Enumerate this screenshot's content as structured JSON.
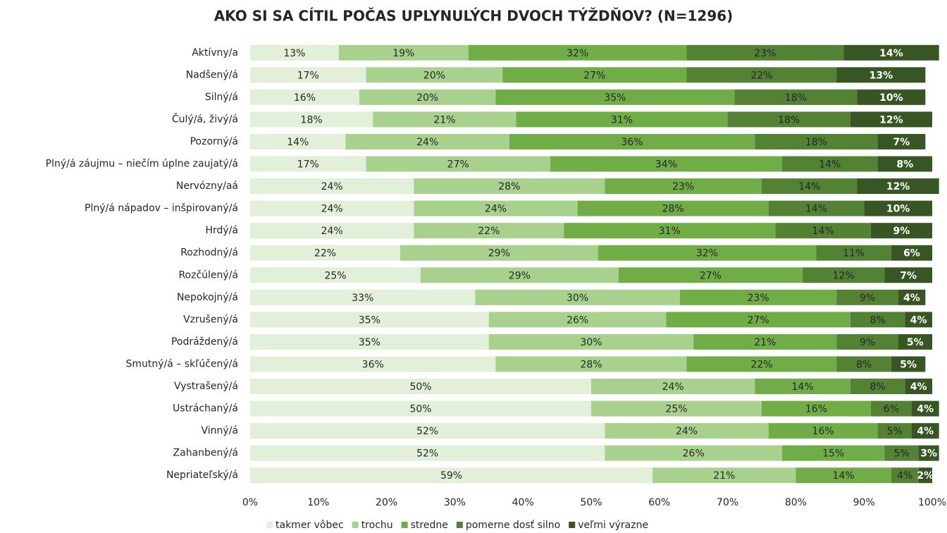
{
  "chart_data": {
    "type": "stacked-barh",
    "title": "AKO SI SA CÍTIL POČAS UPLYNULÝCH DVOCH TÝŽDŇOV? (N=1296)",
    "categories": [
      "Aktívny/a",
      "Nadšený/á",
      "Silný/á",
      "Čulý/á, živý/á",
      "Pozorný/á",
      "Plný/á záujmu – niečím úplne zaujatý/á",
      "Nervózny/aá",
      "Plný/á nápadov – inšpirovaný/á",
      "Hrdý/á",
      "Rozhodný/á",
      "Rozčúlený/á",
      "Nepokojný/á",
      "Vzrušený/á",
      "Podráždený/á",
      "Smutný/á – skľúčený/á",
      "Vystrašený/á",
      "Ustráchaný/á",
      "Vinný/á",
      "Zahanbený/á",
      "Nepriateľský/á"
    ],
    "series": [
      {
        "name": "takmer vôbec",
        "color": "#e2efd9",
        "values": [
          13,
          17,
          16,
          18,
          14,
          17,
          24,
          24,
          24,
          22,
          25,
          33,
          35,
          35,
          36,
          50,
          50,
          52,
          52,
          59
        ],
        "value_labels": [
          "13%",
          "17%",
          "16%",
          "18%",
          "14%",
          "17%",
          "24%",
          "24%",
          "24%",
          "22%",
          "25%",
          "33%",
          "35%",
          "35%",
          "36%",
          "50%",
          "50%",
          "52%",
          "52%",
          "59%"
        ]
      },
      {
        "name": "trochu",
        "color": "#a9d18e",
        "values": [
          19,
          20,
          20,
          21,
          24,
          27,
          28,
          24,
          22,
          29,
          29,
          30,
          26,
          30,
          28,
          24,
          25,
          24,
          26,
          21
        ],
        "value_labels": [
          "19%",
          "20%",
          "20%",
          "21%",
          "24%",
          "27%",
          "28%",
          "24%",
          "22%",
          "29%",
          "29%",
          "30%",
          "26%",
          "30%",
          "28%",
          "24%",
          "25%",
          "24%",
          "26%",
          "21%"
        ]
      },
      {
        "name": "stredne",
        "color": "#70ad47",
        "values": [
          32,
          27,
          35,
          31,
          36,
          34,
          23,
          28,
          31,
          32,
          27,
          23,
          27,
          21,
          22,
          14,
          16,
          16,
          15,
          14
        ],
        "value_labels": [
          "32%",
          "27%",
          "35%",
          "31%",
          "36%",
          "34%",
          "23%",
          "28%",
          "31%",
          "32%",
          "27%",
          "23%",
          "27%",
          "21%",
          "22%",
          "14%",
          "16%",
          "16%",
          "15%",
          "14%"
        ]
      },
      {
        "name": "pomerne dosť silno",
        "color": "#548235",
        "values": [
          23,
          22,
          18,
          18,
          18,
          14,
          14,
          14,
          14,
          11,
          12,
          9,
          8,
          9,
          8,
          8,
          6,
          5,
          5,
          4
        ],
        "value_labels": [
          "23%",
          "22%",
          "18%",
          "18%",
          "18%",
          "14%",
          "14%",
          "14%",
          "14%",
          "11%",
          "12%",
          "9%",
          "8%",
          "9%",
          "8%",
          "8%",
          "6%",
          "5%",
          "5%",
          "4%"
        ]
      },
      {
        "name": "veľmi výrazne",
        "color": "#375623",
        "values": [
          14,
          13,
          10,
          12,
          7,
          8,
          12,
          10,
          9,
          6,
          7,
          4,
          4,
          5,
          5,
          4,
          4,
          4,
          3,
          2
        ],
        "value_labels": [
          "14%",
          "13%",
          "10%",
          "12%",
          "7%",
          "8%",
          "12%",
          "10%",
          "9%",
          "6%",
          "7%",
          "4%",
          "4%",
          "5%",
          "5%",
          "4%",
          "4%",
          "4%",
          "3%",
          "2%"
        ]
      }
    ],
    "xlim": [
      0,
      100
    ],
    "xticks": [
      {
        "value": 0,
        "label": "0%"
      },
      {
        "value": 10,
        "label": "10%"
      },
      {
        "value": 20,
        "label": "20%"
      },
      {
        "value": 30,
        "label": "30%"
      },
      {
        "value": 40,
        "label": "40%"
      },
      {
        "value": 50,
        "label": "50%"
      },
      {
        "value": 60,
        "label": "60%"
      },
      {
        "value": 70,
        "label": "70%"
      },
      {
        "value": 80,
        "label": "80%"
      },
      {
        "value": 90,
        "label": "90%"
      },
      {
        "value": 100,
        "label": "100%"
      }
    ],
    "legend": "bottom"
  }
}
